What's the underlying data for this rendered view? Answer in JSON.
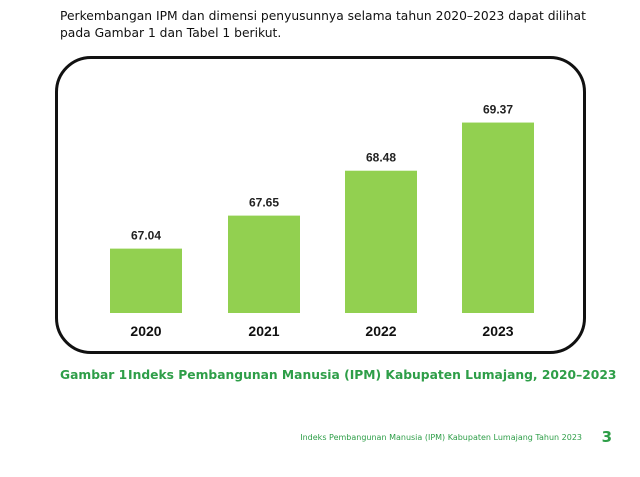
{
  "intro_text": "Perkembangan IPM dan dimensi penyusunnya selama tahun 2020–2023 dapat dilihat pada Gambar 1 dan Tabel 1 berikut.",
  "caption": {
    "number": "Gambar 1",
    "title": "Indeks Pembangunan Manusia (IPM) Kabupaten Lumajang, 2020–2023"
  },
  "footer": {
    "text": "Indeks Pembangunan Manusia (IPM) Kabupaten Lumajang Tahun 2023",
    "page_number": "3"
  },
  "colors": {
    "bar": "#92d050",
    "accent": "#2e9e48"
  },
  "chart_data": {
    "type": "bar",
    "categories": [
      "2020",
      "2021",
      "2022",
      "2023"
    ],
    "values": [
      67.04,
      67.65,
      68.48,
      69.37
    ],
    "value_labels": [
      "67.04",
      "67.65",
      "68.48",
      "69.37"
    ],
    "title": "",
    "xlabel": "",
    "ylabel": "",
    "ylim": [
      65.85,
      69.75
    ],
    "grid": false,
    "legend": "none"
  }
}
